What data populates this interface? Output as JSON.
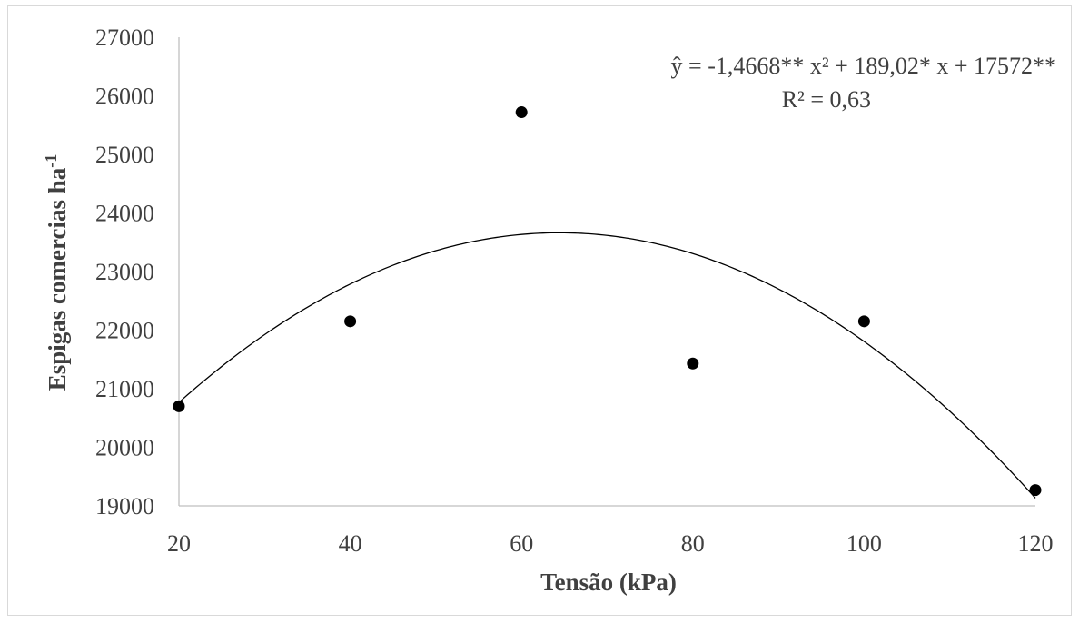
{
  "chart_data": {
    "type": "scatter",
    "xlabel": "Tensão (kPa)",
    "ylabel": "Espigas comercias ha",
    "ylabel_superscript": "-1",
    "xlim": [
      20,
      120
    ],
    "ylim": [
      19000,
      27000
    ],
    "x_ticks": [
      "20",
      "40",
      "60",
      "80",
      "100",
      "120"
    ],
    "y_ticks": [
      "19000",
      "20000",
      "21000",
      "22000",
      "23000",
      "24000",
      "25000",
      "26000",
      "27000"
    ],
    "series": [
      {
        "x": [
          20,
          40,
          60,
          80,
          100,
          120
        ],
        "y": [
          20700,
          22150,
          25720,
          21430,
          22150,
          19270
        ]
      }
    ],
    "trendline": {
      "type": "polynomial",
      "coefficients": [
        -1.4668,
        189.02,
        17572
      ],
      "equation_label": "ŷ = -1,4668** x² + 189,02* x + 17572**",
      "r2_label": "R² = 0,63"
    },
    "grid": false,
    "legend": "none",
    "colors": {
      "points": "#000000",
      "trendline": "#000000",
      "axis": "#bfbfbf",
      "text": "#404040"
    }
  }
}
